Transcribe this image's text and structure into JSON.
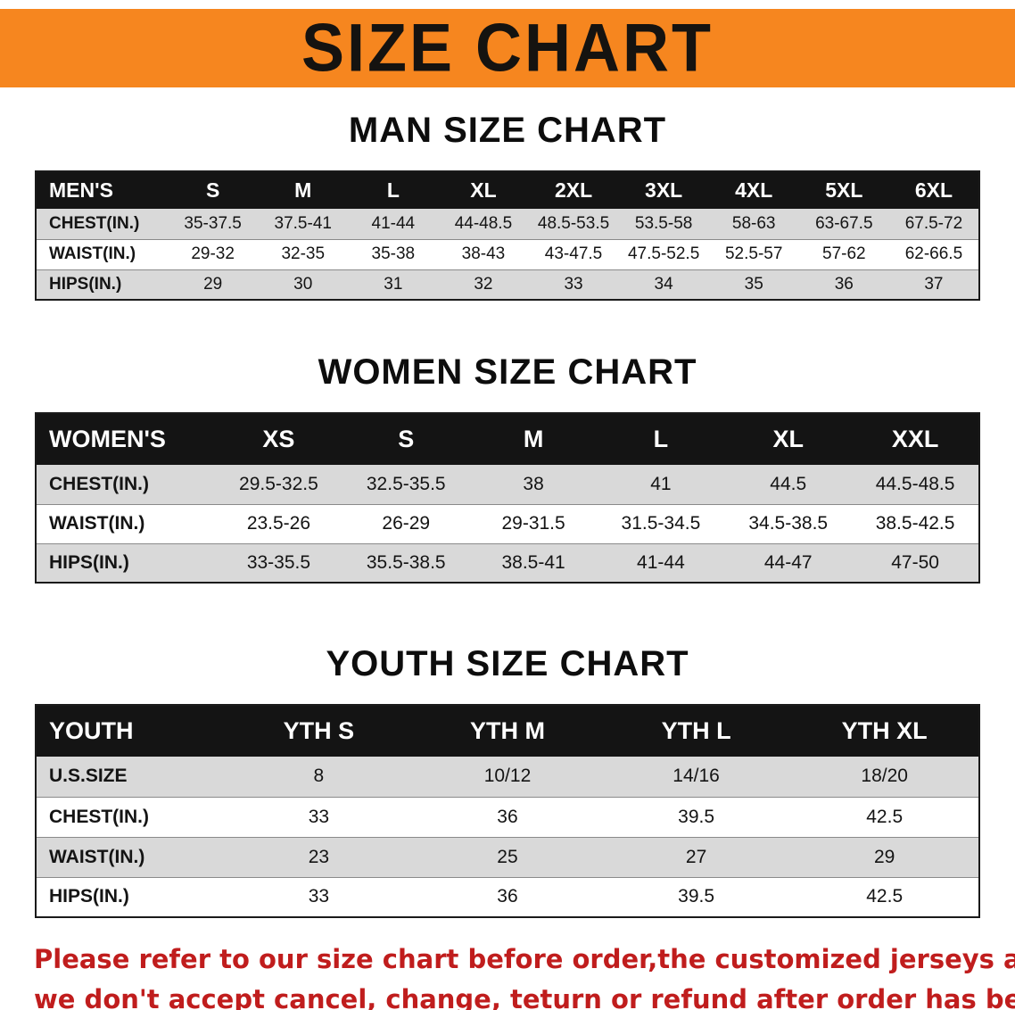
{
  "banner": {
    "title": "SIZE CHART",
    "bg_color": "#f6861f",
    "text_color": "#151310"
  },
  "sections": {
    "men": {
      "heading": "MAN SIZE CHART",
      "table": {
        "header": [
          "MEN'S",
          "S",
          "M",
          "L",
          "XL",
          "2XL",
          "3XL",
          "4XL",
          "5XL",
          "6XL"
        ],
        "rows": [
          [
            "CHEST(IN.)",
            "35-37.5",
            "37.5-41",
            "41-44",
            "44-48.5",
            "48.5-53.5",
            "53.5-58",
            "58-63",
            "63-67.5",
            "67.5-72"
          ],
          [
            "WAIST(IN.)",
            "29-32",
            "32-35",
            "35-38",
            "38-43",
            "43-47.5",
            "47.5-52.5",
            "52.5-57",
            "57-62",
            "62-66.5"
          ],
          [
            "HIPS(IN.)",
            "29",
            "30",
            "31",
            "32",
            "33",
            "34",
            "35",
            "36",
            "37"
          ]
        ]
      }
    },
    "women": {
      "heading": "WOMEN SIZE CHART",
      "table": {
        "header": [
          "WOMEN'S",
          "XS",
          "S",
          "M",
          "L",
          "XL",
          "XXL"
        ],
        "rows": [
          [
            "CHEST(IN.)",
            "29.5-32.5",
            "32.5-35.5",
            "38",
            "41",
            "44.5",
            "44.5-48.5"
          ],
          [
            "WAIST(IN.)",
            "23.5-26",
            "26-29",
            "29-31.5",
            "31.5-34.5",
            "34.5-38.5",
            "38.5-42.5"
          ],
          [
            "HIPS(IN.)",
            "33-35.5",
            "35.5-38.5",
            "38.5-41",
            "41-44",
            "44-47",
            "47-50"
          ]
        ]
      }
    },
    "youth": {
      "heading": "YOUTH SIZE CHART",
      "table": {
        "header": [
          "YOUTH",
          "YTH S",
          "YTH M",
          "YTH L",
          "YTH XL"
        ],
        "rows": [
          [
            "U.S.SIZE",
            "8",
            "10/12",
            "14/16",
            "18/20"
          ],
          [
            "CHEST(IN.)",
            "33",
            "36",
            "39.5",
            "42.5"
          ],
          [
            "WAIST(IN.)",
            "23",
            "25",
            "27",
            "29"
          ],
          [
            "HIPS(IN.)",
            "33",
            "36",
            "39.5",
            "42.5"
          ]
        ]
      }
    }
  },
  "footer": {
    "line1": "Please refer to our size chart before order,the customized jerseys are special products,",
    "line2": "we don't accept cancel, change, teturn or refund after order has been placed!",
    "text_color": "#c01d1d"
  }
}
